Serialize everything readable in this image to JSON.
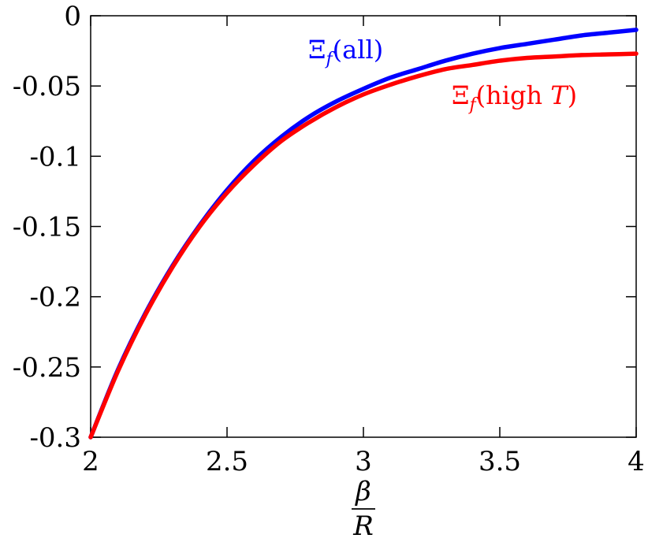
{
  "chart_data": {
    "type": "line",
    "title": "",
    "xlabel_num": "β",
    "xlabel_den": "R",
    "ylabel": "",
    "xlim": [
      2,
      4
    ],
    "ylim": [
      -0.3,
      0
    ],
    "x_ticks": [
      2,
      2.5,
      3,
      3.5,
      4
    ],
    "x_tick_labels": [
      "2",
      "2.5",
      "3",
      "3.5",
      "4"
    ],
    "y_ticks": [
      0,
      -0.05,
      -0.1,
      -0.15,
      -0.2,
      -0.25,
      -0.3
    ],
    "y_tick_labels": [
      "0",
      "-0.05",
      "-0.1",
      "-0.15",
      "-0.2",
      "-0.25",
      "-0.3"
    ],
    "grid": false,
    "series": [
      {
        "name": "Ξf(all)",
        "label_main": "Ξ",
        "label_sub": "f",
        "label_rest": "(all)",
        "color": "#0000ff",
        "x": [
          2.0,
          2.1,
          2.2,
          2.3,
          2.4,
          2.5,
          2.6,
          2.7,
          2.8,
          2.9,
          3.0,
          3.1,
          3.2,
          3.3,
          3.4,
          3.5,
          3.6,
          3.7,
          3.8,
          3.9,
          4.0
        ],
        "y": [
          -0.3,
          -0.252,
          -0.212,
          -0.178,
          -0.149,
          -0.124,
          -0.103,
          -0.086,
          -0.072,
          -0.061,
          -0.052,
          -0.044,
          -0.038,
          -0.032,
          -0.027,
          -0.023,
          -0.02,
          -0.017,
          -0.014,
          -0.012,
          -0.01
        ]
      },
      {
        "name": "Ξf(high T)",
        "label_main": "Ξ",
        "label_sub": "f",
        "label_rest": "(high ",
        "label_var": "T",
        "label_close": ")",
        "color": "#ff0000",
        "x": [
          2.0,
          2.1,
          2.2,
          2.3,
          2.4,
          2.5,
          2.6,
          2.7,
          2.8,
          2.9,
          3.0,
          3.1,
          3.2,
          3.3,
          3.4,
          3.5,
          3.6,
          3.7,
          3.8,
          3.9,
          4.0
        ],
        "y": [
          -0.3,
          -0.253,
          -0.213,
          -0.179,
          -0.15,
          -0.126,
          -0.106,
          -0.089,
          -0.076,
          -0.065,
          -0.056,
          -0.049,
          -0.043,
          -0.038,
          -0.035,
          -0.032,
          -0.03,
          -0.029,
          -0.028,
          -0.0275,
          -0.027
        ]
      }
    ]
  }
}
